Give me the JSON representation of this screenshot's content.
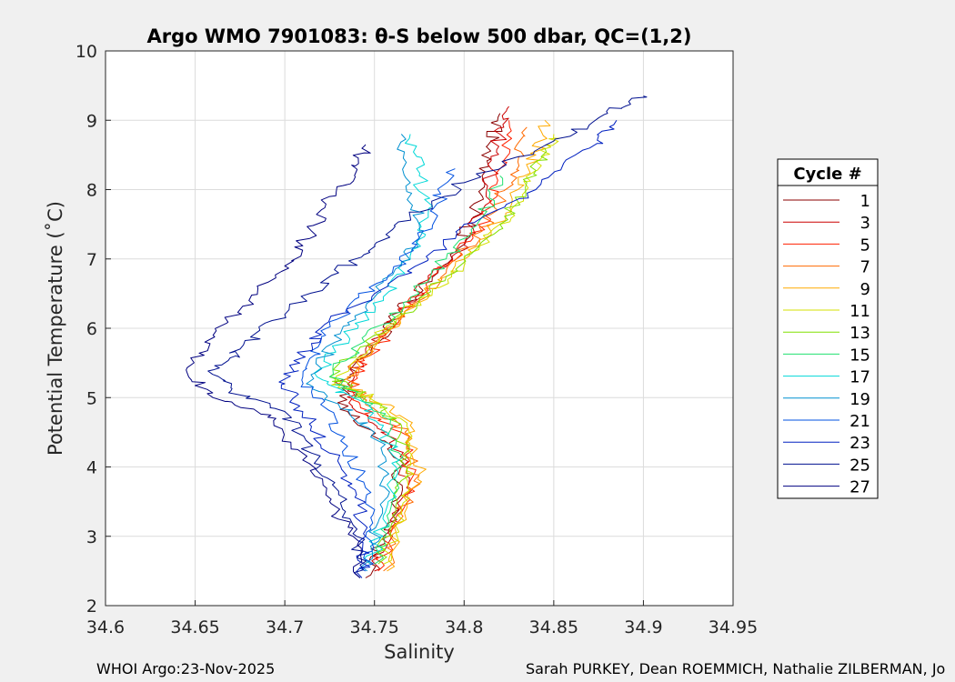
{
  "chart_data": {
    "type": "line",
    "title": "Argo WMO 7901083: θ-S below 500 dbar,  QC=(1,2)",
    "xlabel": "Salinity",
    "ylabel": "Potential Temperature (˚C)",
    "xlim": [
      34.6,
      34.95
    ],
    "ylim": [
      2,
      10
    ],
    "xticks": [
      "34.6",
      "34.65",
      "34.7",
      "34.75",
      "34.8",
      "34.85",
      "34.9",
      "34.95"
    ],
    "yticks": [
      "2",
      "3",
      "4",
      "5",
      "6",
      "7",
      "8",
      "9",
      "10"
    ],
    "grid": true,
    "legend": {
      "title": "Cycle #",
      "placement": "right",
      "entries": [
        "1",
        "3",
        "5",
        "7",
        "9",
        "11",
        "13",
        "15",
        "17",
        "19",
        "21",
        "23",
        "25",
        "27"
      ]
    },
    "series": [
      {
        "name": "1",
        "color": "#8b0000",
        "points": [
          [
            34.745,
            2.4
          ],
          [
            34.755,
            3.0
          ],
          [
            34.765,
            3.6
          ],
          [
            34.76,
            4.3
          ],
          [
            34.735,
            4.8
          ],
          [
            34.73,
            5.2
          ],
          [
            34.745,
            5.6
          ],
          [
            34.76,
            6.1
          ],
          [
            34.775,
            6.6
          ],
          [
            34.795,
            7.1
          ],
          [
            34.805,
            7.6
          ],
          [
            34.81,
            8.2
          ],
          [
            34.815,
            8.7
          ],
          [
            34.82,
            9.1
          ]
        ]
      },
      {
        "name": "3",
        "color": "#cc0000",
        "points": [
          [
            34.75,
            2.5
          ],
          [
            34.758,
            3.1
          ],
          [
            34.768,
            3.7
          ],
          [
            34.762,
            4.4
          ],
          [
            34.74,
            4.8
          ],
          [
            34.735,
            5.2
          ],
          [
            34.745,
            5.7
          ],
          [
            34.765,
            6.2
          ],
          [
            34.78,
            6.7
          ],
          [
            34.8,
            7.2
          ],
          [
            34.81,
            7.7
          ],
          [
            34.815,
            8.3
          ],
          [
            34.82,
            8.8
          ],
          [
            34.825,
            9.2
          ]
        ]
      },
      {
        "name": "5",
        "color": "#ff2000",
        "points": [
          [
            34.752,
            2.5
          ],
          [
            34.76,
            3.1
          ],
          [
            34.77,
            3.8
          ],
          [
            34.765,
            4.5
          ],
          [
            34.742,
            4.9
          ],
          [
            34.74,
            5.3
          ],
          [
            34.75,
            5.7
          ],
          [
            34.765,
            6.2
          ],
          [
            34.785,
            6.8
          ],
          [
            34.805,
            7.3
          ],
          [
            34.815,
            7.8
          ],
          [
            34.82,
            8.3
          ],
          [
            34.825,
            9.0
          ]
        ]
      },
      {
        "name": "7",
        "color": "#ff6a00",
        "points": [
          [
            34.755,
            2.5
          ],
          [
            34.763,
            3.2
          ],
          [
            34.772,
            3.8
          ],
          [
            34.767,
            4.5
          ],
          [
            34.745,
            4.9
          ],
          [
            34.735,
            5.3
          ],
          [
            34.75,
            5.8
          ],
          [
            34.77,
            6.3
          ],
          [
            34.79,
            6.8
          ],
          [
            34.81,
            7.4
          ],
          [
            34.82,
            7.9
          ],
          [
            34.83,
            8.4
          ],
          [
            34.835,
            8.9
          ]
        ]
      },
      {
        "name": "9",
        "color": "#ffaa00",
        "points": [
          [
            34.757,
            2.5
          ],
          [
            34.765,
            3.2
          ],
          [
            34.775,
            3.9
          ],
          [
            34.77,
            4.6
          ],
          [
            34.748,
            5.0
          ],
          [
            34.73,
            5.2
          ],
          [
            34.752,
            5.8
          ],
          [
            34.772,
            6.3
          ],
          [
            34.795,
            6.9
          ],
          [
            34.815,
            7.4
          ],
          [
            34.83,
            8.0
          ],
          [
            34.84,
            8.5
          ],
          [
            34.845,
            9.0
          ]
        ]
      },
      {
        "name": "11",
        "color": "#d4e000",
        "points": [
          [
            34.755,
            2.6
          ],
          [
            34.763,
            3.3
          ],
          [
            34.772,
            3.9
          ],
          [
            34.768,
            4.6
          ],
          [
            34.747,
            5.0
          ],
          [
            34.728,
            5.2
          ],
          [
            34.752,
            5.9
          ],
          [
            34.775,
            6.4
          ],
          [
            34.8,
            6.9
          ],
          [
            34.82,
            7.5
          ],
          [
            34.835,
            8.0
          ],
          [
            34.845,
            8.5
          ],
          [
            34.85,
            8.8
          ]
        ]
      },
      {
        "name": "13",
        "color": "#80e000",
        "points": [
          [
            34.752,
            2.6
          ],
          [
            34.76,
            3.3
          ],
          [
            34.768,
            4.0
          ],
          [
            34.765,
            4.6
          ],
          [
            34.745,
            5.0
          ],
          [
            34.725,
            5.3
          ],
          [
            34.75,
            5.9
          ],
          [
            34.775,
            6.4
          ],
          [
            34.8,
            7.0
          ],
          [
            34.82,
            7.5
          ],
          [
            34.835,
            8.1
          ],
          [
            34.845,
            8.6
          ]
        ]
      },
      {
        "name": "15",
        "color": "#20e070",
        "points": [
          [
            34.75,
            2.6
          ],
          [
            34.757,
            3.3
          ],
          [
            34.765,
            4.0
          ],
          [
            34.76,
            4.6
          ],
          [
            34.742,
            5.0
          ],
          [
            34.725,
            5.3
          ],
          [
            34.745,
            5.9
          ],
          [
            34.77,
            6.4
          ],
          [
            34.79,
            7.0
          ],
          [
            34.81,
            7.6
          ],
          [
            34.82,
            8.2
          ]
        ]
      },
      {
        "name": "17",
        "color": "#00d8d8",
        "points": [
          [
            34.748,
            2.6
          ],
          [
            34.755,
            3.3
          ],
          [
            34.762,
            4.0
          ],
          [
            34.755,
            4.6
          ],
          [
            34.738,
            5.0
          ],
          [
            34.718,
            5.3
          ],
          [
            34.735,
            5.9
          ],
          [
            34.755,
            6.4
          ],
          [
            34.77,
            7.0
          ],
          [
            34.78,
            7.6
          ],
          [
            34.775,
            8.2
          ],
          [
            34.77,
            8.8
          ]
        ]
      },
      {
        "name": "19",
        "color": "#0090d0",
        "points": [
          [
            34.746,
            2.5
          ],
          [
            34.752,
            3.2
          ],
          [
            34.758,
            3.9
          ],
          [
            34.75,
            4.5
          ],
          [
            34.73,
            4.9
          ],
          [
            34.712,
            5.2
          ],
          [
            34.728,
            5.8
          ],
          [
            34.745,
            6.3
          ],
          [
            34.765,
            6.9
          ],
          [
            34.775,
            7.5
          ],
          [
            34.77,
            8.1
          ],
          [
            34.765,
            8.8
          ]
        ]
      },
      {
        "name": "21",
        "color": "#0050e0",
        "points": [
          [
            34.745,
            2.5
          ],
          [
            34.748,
            3.1
          ],
          [
            34.745,
            3.7
          ],
          [
            34.735,
            4.3
          ],
          [
            34.72,
            4.9
          ],
          [
            34.71,
            5.3
          ],
          [
            34.72,
            5.8
          ],
          [
            34.735,
            6.3
          ],
          [
            34.76,
            6.8
          ],
          [
            34.775,
            7.3
          ],
          [
            34.785,
            7.8
          ],
          [
            34.795,
            8.3
          ]
        ]
      },
      {
        "name": "23",
        "color": "#0020c0",
        "points": [
          [
            34.743,
            2.4
          ],
          [
            34.745,
            3.0
          ],
          [
            34.74,
            3.6
          ],
          [
            34.725,
            4.2
          ],
          [
            34.71,
            4.8
          ],
          [
            34.7,
            5.2
          ],
          [
            34.71,
            5.6
          ],
          [
            34.72,
            6.0
          ],
          [
            34.75,
            6.5
          ],
          [
            34.78,
            7.0
          ],
          [
            34.8,
            7.5
          ],
          [
            34.84,
            8.0
          ],
          [
            34.87,
            8.6
          ],
          [
            34.885,
            9.0
          ]
        ]
      },
      {
        "name": "25",
        "color": "#00108f",
        "points": [
          [
            34.742,
            2.4
          ],
          [
            34.74,
            3.0
          ],
          [
            34.73,
            3.6
          ],
          [
            34.715,
            4.2
          ],
          [
            34.7,
            4.8
          ],
          [
            34.67,
            5.1
          ],
          [
            34.66,
            5.4
          ],
          [
            34.675,
            5.7
          ],
          [
            34.7,
            6.2
          ],
          [
            34.73,
            6.8
          ],
          [
            34.75,
            7.2
          ],
          [
            34.77,
            7.6
          ],
          [
            34.8,
            8.1
          ],
          [
            34.85,
            8.7
          ],
          [
            34.88,
            9.1
          ],
          [
            34.9,
            9.35
          ]
        ]
      },
      {
        "name": "27",
        "color": "#000080",
        "points": [
          [
            34.742,
            2.4
          ],
          [
            34.738,
            3.0
          ],
          [
            34.725,
            3.5
          ],
          [
            34.71,
            4.1
          ],
          [
            34.695,
            4.7
          ],
          [
            34.66,
            5.0
          ],
          [
            34.645,
            5.4
          ],
          [
            34.66,
            5.9
          ],
          [
            34.68,
            6.4
          ],
          [
            34.7,
            6.9
          ],
          [
            34.715,
            7.4
          ],
          [
            34.725,
            7.9
          ],
          [
            34.74,
            8.3
          ],
          [
            34.745,
            8.65
          ]
        ]
      }
    ]
  },
  "footer": {
    "left": "WHOI Argo:23-Nov-2025",
    "right": "Sarah PURKEY, Dean ROEMMICH, Nathalie ZILBERMAN, Jo"
  }
}
